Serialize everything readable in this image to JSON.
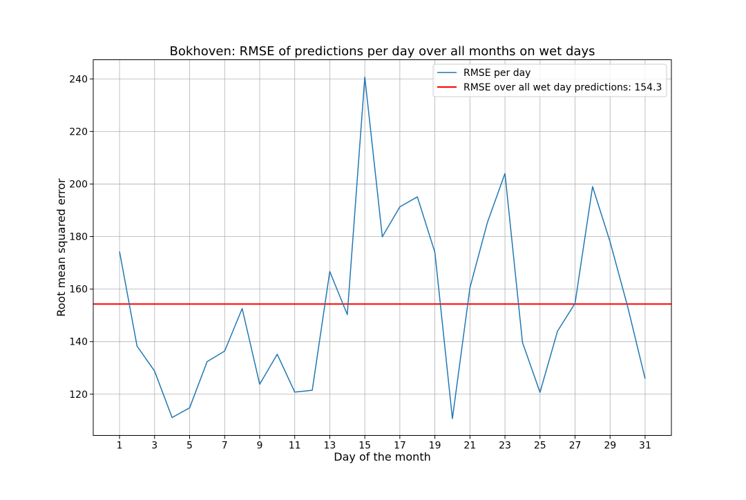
{
  "chart_data": {
    "type": "line",
    "title": "Bokhoven: RMSE of predictions per day over all months on wet days",
    "xlabel": "Day of the month",
    "ylabel": "Root mean squared error",
    "x": [
      1,
      2,
      3,
      4,
      5,
      6,
      7,
      8,
      9,
      10,
      11,
      12,
      13,
      14,
      15,
      16,
      17,
      18,
      19,
      20,
      21,
      22,
      23,
      24,
      25,
      26,
      27,
      28,
      29,
      30,
      31
    ],
    "xticks": [
      1,
      3,
      5,
      7,
      9,
      11,
      13,
      15,
      17,
      19,
      21,
      23,
      25,
      27,
      29,
      31
    ],
    "yticks": [
      120,
      140,
      160,
      180,
      200,
      220,
      240
    ],
    "xlim": [
      -0.5,
      32.5
    ],
    "ylim": [
      104.3,
      247.3
    ],
    "grid": true,
    "legend_position": "top-right",
    "series": [
      {
        "name": "RMSE per day",
        "color": "#1f77b4",
        "values": [
          174.3,
          138.3,
          128.8,
          111.1,
          114.8,
          132.4,
          136.4,
          152.6,
          123.8,
          135.2,
          120.8,
          121.5,
          166.7,
          150.3,
          240.7,
          179.9,
          191.3,
          195.1,
          174.0,
          110.7,
          160.5,
          185.4,
          204.0,
          139.7,
          120.7,
          144.0,
          154.6,
          199.0,
          178.0,
          153.4,
          125.9
        ]
      }
    ],
    "reference_lines": [
      {
        "name": "RMSE over all wet day predictions: 154.3",
        "value": 154.3,
        "color": "#ff0000"
      }
    ]
  }
}
